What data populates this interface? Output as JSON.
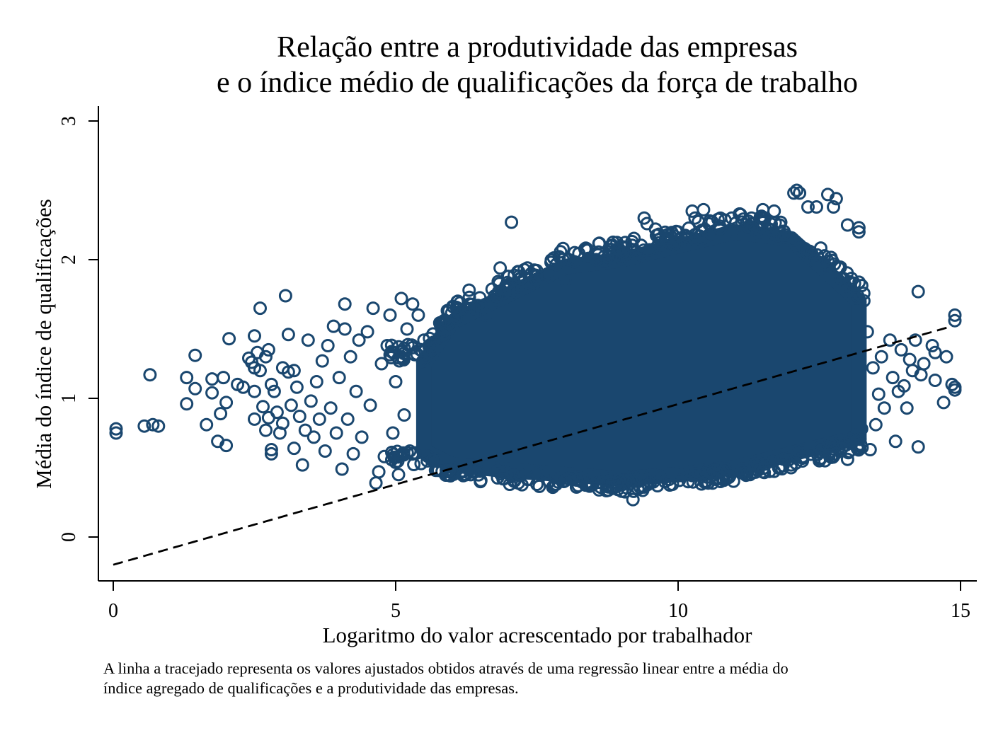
{
  "chart_data": {
    "type": "scatter",
    "title_lines": [
      "Relação entre a produtividade das empresas",
      "e o índice médio de qualificações da força de trabalho"
    ],
    "xlabel": "Logaritmo do valor acrescentado por trabalhador",
    "ylabel": "Média do índice de qualificações",
    "note_lines": [
      "A linha a tracejado representa os valores ajustados obtidos através de uma regressão linear entre a média do",
      "índice agregado de qualificações e a produtividade das empresas."
    ],
    "xlim": [
      -0.3,
      15.3
    ],
    "ylim": [
      -0.31,
      3.1
    ],
    "x_ticks": [
      0,
      5,
      10,
      15
    ],
    "x_tick_labels": [
      "0",
      "5",
      "10",
      "15"
    ],
    "y_ticks": [
      0,
      1,
      2,
      3
    ],
    "y_tick_labels": [
      "0",
      "1",
      "2",
      "3"
    ],
    "grid": false,
    "legend": "none",
    "marker": "hollow-circle",
    "marker_color": "#1a476f",
    "fit_line": {
      "style": "dashed",
      "color": "#000000",
      "x": [
        0,
        14.85
      ],
      "y": [
        -0.2,
        1.52
      ]
    },
    "dense_region": {
      "description_outline_x": [
        5.5,
        6,
        7,
        8,
        9,
        10,
        11,
        12,
        13.2
      ],
      "upper_y": [
        1.25,
        1.55,
        1.75,
        1.95,
        2.0,
        2.1,
        2.2,
        2.15,
        1.7
      ],
      "lower_y": [
        0.62,
        0.52,
        0.48,
        0.45,
        0.42,
        0.45,
        0.5,
        0.6,
        0.72
      ]
    },
    "points": [
      {
        "x": 0.05,
        "y": 0.75
      },
      {
        "x": 0.05,
        "y": 0.78
      },
      {
        "x": 0.55,
        "y": 0.8
      },
      {
        "x": 0.7,
        "y": 0.81
      },
      {
        "x": 0.8,
        "y": 0.8
      },
      {
        "x": 0.65,
        "y": 1.17
      },
      {
        "x": 1.3,
        "y": 0.96
      },
      {
        "x": 1.3,
        "y": 1.15
      },
      {
        "x": 1.45,
        "y": 1.07
      },
      {
        "x": 1.45,
        "y": 1.31
      },
      {
        "x": 1.65,
        "y": 0.81
      },
      {
        "x": 1.75,
        "y": 1.04
      },
      {
        "x": 1.75,
        "y": 1.14
      },
      {
        "x": 1.85,
        "y": 0.69
      },
      {
        "x": 1.9,
        "y": 0.89
      },
      {
        "x": 1.95,
        "y": 1.15
      },
      {
        "x": 2.0,
        "y": 0.66
      },
      {
        "x": 2.0,
        "y": 0.97
      },
      {
        "x": 2.05,
        "y": 1.43
      },
      {
        "x": 2.2,
        "y": 1.1
      },
      {
        "x": 2.3,
        "y": 1.08
      },
      {
        "x": 2.4,
        "y": 1.29
      },
      {
        "x": 2.45,
        "y": 1.26
      },
      {
        "x": 2.5,
        "y": 0.85
      },
      {
        "x": 2.5,
        "y": 1.05
      },
      {
        "x": 2.5,
        "y": 1.45
      },
      {
        "x": 2.5,
        "y": 1.22
      },
      {
        "x": 2.55,
        "y": 1.33
      },
      {
        "x": 2.6,
        "y": 1.65
      },
      {
        "x": 2.6,
        "y": 1.2
      },
      {
        "x": 2.65,
        "y": 0.94
      },
      {
        "x": 2.7,
        "y": 0.77
      },
      {
        "x": 2.7,
        "y": 1.3
      },
      {
        "x": 2.75,
        "y": 0.86
      },
      {
        "x": 2.75,
        "y": 1.35
      },
      {
        "x": 2.8,
        "y": 1.1
      },
      {
        "x": 2.8,
        "y": 0.6
      },
      {
        "x": 2.8,
        "y": 0.63
      },
      {
        "x": 2.85,
        "y": 1.05
      },
      {
        "x": 2.9,
        "y": 0.9
      },
      {
        "x": 2.95,
        "y": 0.75
      },
      {
        "x": 3.0,
        "y": 1.22
      },
      {
        "x": 3.0,
        "y": 0.82
      },
      {
        "x": 3.05,
        "y": 1.74
      },
      {
        "x": 3.1,
        "y": 1.46
      },
      {
        "x": 3.1,
        "y": 1.19
      },
      {
        "x": 3.15,
        "y": 0.95
      },
      {
        "x": 3.2,
        "y": 1.2
      },
      {
        "x": 3.2,
        "y": 0.64
      },
      {
        "x": 3.25,
        "y": 1.08
      },
      {
        "x": 3.3,
        "y": 0.87
      },
      {
        "x": 3.35,
        "y": 0.52
      },
      {
        "x": 3.4,
        "y": 0.77
      },
      {
        "x": 3.45,
        "y": 1.42
      },
      {
        "x": 3.5,
        "y": 0.98
      },
      {
        "x": 3.55,
        "y": 0.72
      },
      {
        "x": 3.6,
        "y": 1.12
      },
      {
        "x": 3.65,
        "y": 0.85
      },
      {
        "x": 3.7,
        "y": 1.27
      },
      {
        "x": 3.75,
        "y": 0.62
      },
      {
        "x": 3.8,
        "y": 1.38
      },
      {
        "x": 3.85,
        "y": 0.93
      },
      {
        "x": 3.9,
        "y": 1.52
      },
      {
        "x": 3.95,
        "y": 0.75
      },
      {
        "x": 4.0,
        "y": 1.15
      },
      {
        "x": 4.05,
        "y": 0.49
      },
      {
        "x": 4.1,
        "y": 1.68
      },
      {
        "x": 4.1,
        "y": 1.5
      },
      {
        "x": 4.15,
        "y": 0.85
      },
      {
        "x": 4.2,
        "y": 1.3
      },
      {
        "x": 4.25,
        "y": 0.6
      },
      {
        "x": 4.3,
        "y": 1.05
      },
      {
        "x": 4.35,
        "y": 1.42
      },
      {
        "x": 4.4,
        "y": 0.72
      },
      {
        "x": 4.5,
        "y": 1.48
      },
      {
        "x": 4.55,
        "y": 0.95
      },
      {
        "x": 4.6,
        "y": 1.65
      },
      {
        "x": 4.65,
        "y": 0.39
      },
      {
        "x": 4.7,
        "y": 0.47
      },
      {
        "x": 4.75,
        "y": 1.25
      },
      {
        "x": 4.8,
        "y": 0.58
      },
      {
        "x": 4.85,
        "y": 1.38
      },
      {
        "x": 4.9,
        "y": 1.6
      },
      {
        "x": 4.95,
        "y": 0.75
      },
      {
        "x": 5.0,
        "y": 1.12
      },
      {
        "x": 5.05,
        "y": 0.45
      },
      {
        "x": 5.1,
        "y": 1.72
      },
      {
        "x": 5.15,
        "y": 0.88
      },
      {
        "x": 5.2,
        "y": 1.5
      },
      {
        "x": 5.25,
        "y": 0.62
      },
      {
        "x": 5.3,
        "y": 1.68
      },
      {
        "x": 5.4,
        "y": 1.6
      },
      {
        "x": 5.45,
        "y": 0.53
      },
      {
        "x": 5.5,
        "y": 1.42
      },
      {
        "x": 6.1,
        "y": 1.7
      },
      {
        "x": 6.2,
        "y": 0.45
      },
      {
        "x": 6.3,
        "y": 1.78
      },
      {
        "x": 6.5,
        "y": 0.4
      },
      {
        "x": 6.6,
        "y": 1.6
      },
      {
        "x": 6.85,
        "y": 1.94
      },
      {
        "x": 6.9,
        "y": 0.42
      },
      {
        "x": 7.0,
        "y": 1.8
      },
      {
        "x": 7.05,
        "y": 2.27
      },
      {
        "x": 7.2,
        "y": 0.45
      },
      {
        "x": 7.4,
        "y": 1.9
      },
      {
        "x": 7.5,
        "y": 0.38
      },
      {
        "x": 7.75,
        "y": 1.98
      },
      {
        "x": 7.8,
        "y": 0.37
      },
      {
        "x": 8.0,
        "y": 1.85
      },
      {
        "x": 8.2,
        "y": 0.36
      },
      {
        "x": 8.55,
        "y": 2.0
      },
      {
        "x": 8.6,
        "y": 0.34
      },
      {
        "x": 8.95,
        "y": 2.08
      },
      {
        "x": 9.0,
        "y": 0.33
      },
      {
        "x": 9.2,
        "y": 0.27
      },
      {
        "x": 9.4,
        "y": 0.36
      },
      {
        "x": 9.4,
        "y": 2.3
      },
      {
        "x": 9.45,
        "y": 2.26
      },
      {
        "x": 9.6,
        "y": 2.22
      },
      {
        "x": 9.65,
        "y": 2.18
      },
      {
        "x": 9.9,
        "y": 0.38
      },
      {
        "x": 10.0,
        "y": 2.2
      },
      {
        "x": 10.25,
        "y": 2.35
      },
      {
        "x": 10.3,
        "y": 2.3
      },
      {
        "x": 10.45,
        "y": 2.36
      },
      {
        "x": 10.5,
        "y": 0.4
      },
      {
        "x": 10.9,
        "y": 0.43
      },
      {
        "x": 10.95,
        "y": 2.3
      },
      {
        "x": 11.3,
        "y": 2.3
      },
      {
        "x": 11.5,
        "y": 0.47
      },
      {
        "x": 11.5,
        "y": 2.36
      },
      {
        "x": 11.7,
        "y": 2.35
      },
      {
        "x": 11.8,
        "y": 2.25
      },
      {
        "x": 12.0,
        "y": 0.5
      },
      {
        "x": 12.05,
        "y": 2.48
      },
      {
        "x": 12.1,
        "y": 2.5
      },
      {
        "x": 12.15,
        "y": 2.48
      },
      {
        "x": 12.3,
        "y": 2.38
      },
      {
        "x": 12.45,
        "y": 2.38
      },
      {
        "x": 12.5,
        "y": 0.55
      },
      {
        "x": 12.6,
        "y": 0.55
      },
      {
        "x": 12.65,
        "y": 2.47
      },
      {
        "x": 12.75,
        "y": 2.38
      },
      {
        "x": 12.8,
        "y": 2.44
      },
      {
        "x": 12.9,
        "y": 0.64
      },
      {
        "x": 13.0,
        "y": 0.56
      },
      {
        "x": 13.0,
        "y": 2.25
      },
      {
        "x": 13.2,
        "y": 2.2
      },
      {
        "x": 13.2,
        "y": 2.23
      },
      {
        "x": 13.25,
        "y": 0.78
      },
      {
        "x": 13.35,
        "y": 1.48
      },
      {
        "x": 13.4,
        "y": 0.63
      },
      {
        "x": 13.45,
        "y": 1.22
      },
      {
        "x": 13.5,
        "y": 0.81
      },
      {
        "x": 13.55,
        "y": 1.03
      },
      {
        "x": 13.6,
        "y": 1.3
      },
      {
        "x": 13.65,
        "y": 0.93
      },
      {
        "x": 13.75,
        "y": 1.42
      },
      {
        "x": 13.8,
        "y": 1.15
      },
      {
        "x": 13.85,
        "y": 0.69
      },
      {
        "x": 13.9,
        "y": 1.05
      },
      {
        "x": 13.95,
        "y": 1.35
      },
      {
        "x": 14.0,
        "y": 1.09
      },
      {
        "x": 14.05,
        "y": 0.93
      },
      {
        "x": 14.1,
        "y": 1.28
      },
      {
        "x": 14.15,
        "y": 1.2
      },
      {
        "x": 14.2,
        "y": 1.42
      },
      {
        "x": 14.25,
        "y": 0.65
      },
      {
        "x": 14.25,
        "y": 1.77
      },
      {
        "x": 14.3,
        "y": 1.17
      },
      {
        "x": 14.35,
        "y": 1.25
      },
      {
        "x": 14.5,
        "y": 1.38
      },
      {
        "x": 14.55,
        "y": 1.33
      },
      {
        "x": 14.55,
        "y": 1.13
      },
      {
        "x": 14.7,
        "y": 0.97
      },
      {
        "x": 14.75,
        "y": 1.3
      },
      {
        "x": 14.85,
        "y": 1.1
      },
      {
        "x": 14.9,
        "y": 1.6
      },
      {
        "x": 14.9,
        "y": 1.56
      },
      {
        "x": 14.9,
        "y": 1.08
      },
      {
        "x": 14.9,
        "y": 1.06
      }
    ]
  }
}
